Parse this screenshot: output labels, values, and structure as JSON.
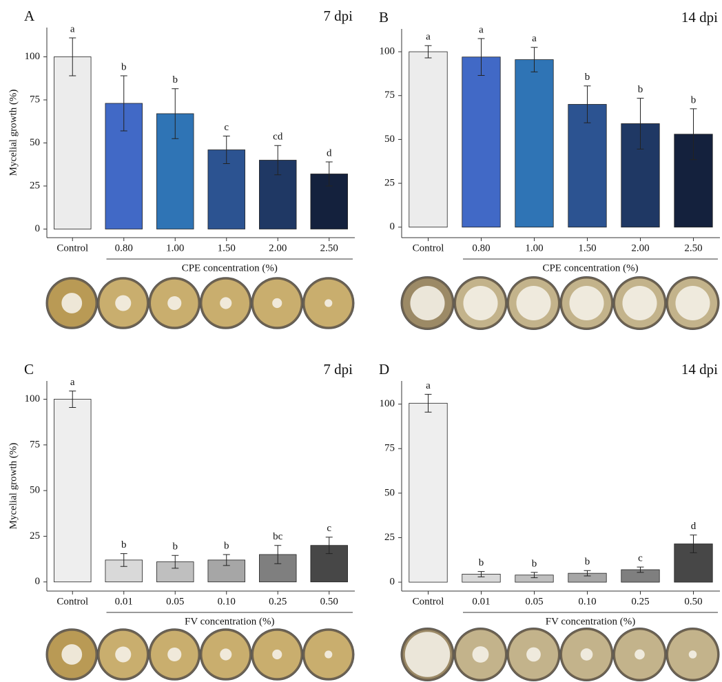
{
  "chart_data": [
    {
      "type": "bar",
      "panel": "A",
      "title": "7 dpi",
      "ylabel": "Mycelial growth (%)",
      "xlabel": "CPE concentration (%)",
      "categories": [
        "Control",
        "0.80",
        "1.00",
        "1.50",
        "2.00",
        "2.50"
      ],
      "values": [
        100,
        73,
        67,
        46,
        40,
        32
      ],
      "errors": [
        11,
        16,
        14.5,
        8,
        8.5,
        7
      ],
      "letters": [
        "a",
        "b",
        "b",
        "c",
        "cd",
        "d"
      ],
      "colors": [
        "#ececec",
        "#4169c6",
        "#2f74b5",
        "#2c5391",
        "#1f3864",
        "#14213d"
      ],
      "ylim": [
        -5,
        117
      ],
      "yticks": [
        0,
        25,
        50,
        75,
        100
      ]
    },
    {
      "type": "bar",
      "panel": "B",
      "title": "14 dpi",
      "xlabel": "CPE concentration (%)",
      "categories": [
        "Control",
        "0.80",
        "1.00",
        "1.50",
        "2.00",
        "2.50"
      ],
      "values": [
        100,
        97,
        95.5,
        70,
        59,
        53
      ],
      "errors": [
        3.5,
        10.5,
        7,
        10.5,
        14.5,
        14.5
      ],
      "letters": [
        "a",
        "a",
        "a",
        "b",
        "b",
        "b"
      ],
      "colors": [
        "#ececec",
        "#4169c6",
        "#2f74b5",
        "#2c5391",
        "#1f3864",
        "#14213d"
      ],
      "ylim": [
        -6,
        113
      ],
      "yticks": [
        0,
        25,
        50,
        75,
        100
      ]
    },
    {
      "type": "bar",
      "panel": "C",
      "title": "7 dpi",
      "ylabel": "Mycelial growth (%)",
      "xlabel": "FV concentration (%)",
      "categories": [
        "Control",
        "0.01",
        "0.05",
        "0.10",
        "0.25",
        "0.50"
      ],
      "values": [
        100,
        12,
        11,
        12,
        15,
        20
      ],
      "errors": [
        4.5,
        3.5,
        3.5,
        3,
        5,
        4.5
      ],
      "letters": [
        "a",
        "b",
        "b",
        "b",
        "bc",
        "c"
      ],
      "colors": [
        "#eeeeee",
        "#d9d9d9",
        "#bfbfbf",
        "#a6a6a6",
        "#7f7f7f",
        "#474747"
      ],
      "ylim": [
        -5,
        110
      ],
      "yticks": [
        0,
        25,
        50,
        75,
        100
      ]
    },
    {
      "type": "bar",
      "panel": "D",
      "title": "14 dpi",
      "xlabel": "FV concentration (%)",
      "categories": [
        "Control",
        "0.01",
        "0.05",
        "0.10",
        "0.25",
        "0.50"
      ],
      "values": [
        100.5,
        4.5,
        4,
        5,
        7,
        21.5
      ],
      "errors": [
        5,
        1.5,
        1.5,
        1.5,
        1.5,
        5
      ],
      "letters": [
        "a",
        "b",
        "b",
        "b",
        "c",
        "d"
      ],
      "colors": [
        "#eeeeee",
        "#d9d9d9",
        "#bfbfbf",
        "#a6a6a6",
        "#7f7f7f",
        "#474747"
      ],
      "ylim": [
        -5,
        113
      ],
      "yticks": [
        0,
        25,
        50,
        75,
        100
      ]
    }
  ]
}
